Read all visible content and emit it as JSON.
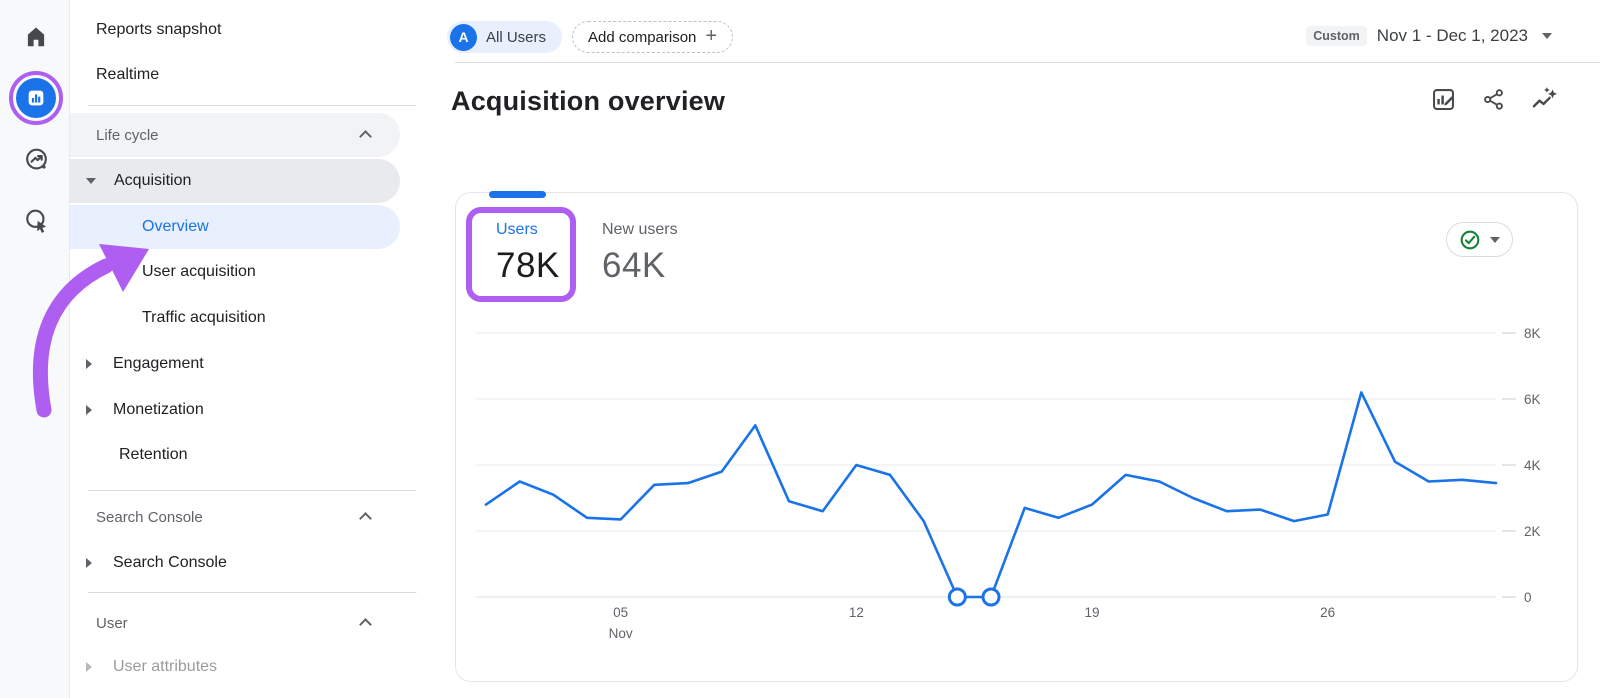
{
  "colors": {
    "accent_blue": "#1a73e8",
    "annotation_purple": "#ae5ef0",
    "check_green": "#188038"
  },
  "rail": {
    "icons": [
      "home",
      "reports",
      "explore",
      "advertising"
    ],
    "active_icon": "reports"
  },
  "sidebar": {
    "reports_snapshot": "Reports snapshot",
    "realtime": "Realtime",
    "life_cycle": "Life cycle",
    "acquisition": "Acquisition",
    "overview": "Overview",
    "user_acquisition": "User acquisition",
    "traffic_acquisition": "Traffic acquisition",
    "engagement": "Engagement",
    "monetization": "Monetization",
    "retention": "Retention",
    "search_console_header": "Search Console",
    "search_console_item": "Search Console",
    "user_header": "User",
    "user_attributes": "User attributes"
  },
  "header": {
    "all_users_avatar": "A",
    "all_users": "All Users",
    "add_comparison": "Add comparison",
    "date_range_type": "Custom",
    "date_range": "Nov 1 - Dec 1, 2023",
    "title": "Acquisition overview"
  },
  "card": {
    "metric_tabs": [
      {
        "label": "Users",
        "value": "78K"
      },
      {
        "label": "New users",
        "value": "64K"
      }
    ]
  },
  "chart_data": {
    "type": "line",
    "series_name": "Users",
    "x_description": "Days Nov 1 - Dec 1, 2023",
    "values": [
      2800,
      3500,
      3100,
      2400,
      2350,
      3400,
      3450,
      3800,
      5200,
      2900,
      2600,
      4000,
      3700,
      2300,
      0,
      0,
      2700,
      2400,
      2800,
      3700,
      3500,
      3000,
      2600,
      2650,
      2300,
      2500,
      6200,
      4100,
      3500,
      3550,
      3450
    ],
    "highlighted_point_indices": [
      14,
      15
    ],
    "x_tick_positions": [
      4,
      11,
      18,
      25
    ],
    "x_tick_labels": [
      [
        "05",
        "Nov"
      ],
      [
        "12"
      ],
      [
        "19"
      ],
      [
        "26"
      ]
    ],
    "y_ticks": [
      0,
      2000,
      4000,
      6000,
      8000
    ],
    "y_tick_labels": [
      "0",
      "2K",
      "4K",
      "6K",
      "8K"
    ],
    "ylim": [
      0,
      8000
    ],
    "grid": "horizontal",
    "legend": "none",
    "line_color": "#1a73e8"
  }
}
